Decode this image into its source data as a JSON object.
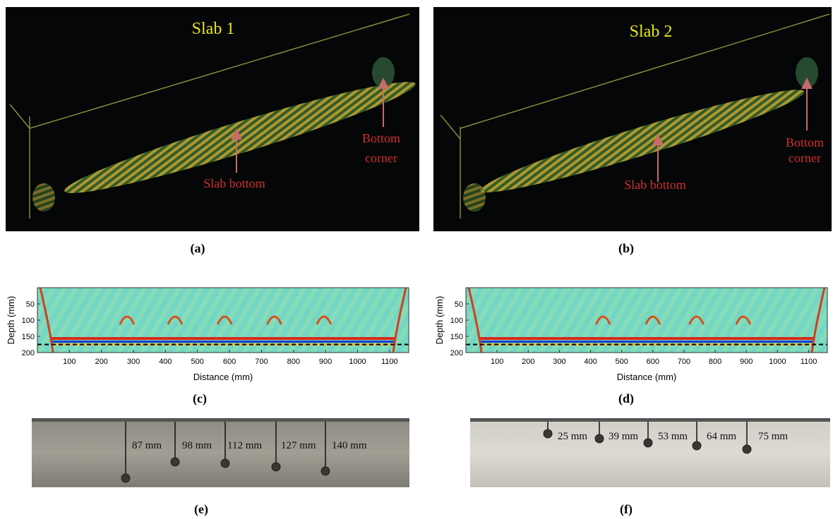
{
  "renders": [
    {
      "title": "Slab 1",
      "slab_bottom": "Slab bottom",
      "bottom_corner": [
        "Bottom",
        "corner"
      ],
      "label": "(a)"
    },
    {
      "title": "Slab 2",
      "slab_bottom": "Slab bottom",
      "bottom_corner": [
        "Bottom",
        "corner"
      ],
      "label": "(b)"
    }
  ],
  "bscans": [
    {
      "label": "(c)",
      "xlabel": "Distance (mm)",
      "ylabel": "Depth (mm)",
      "xlim": [
        0,
        1160
      ],
      "ylim": [
        0,
        200
      ],
      "y_reversed": true,
      "xticks": [
        100,
        200,
        300,
        400,
        500,
        600,
        700,
        800,
        900,
        1000,
        1100
      ],
      "yticks": [
        50,
        100,
        150,
        200
      ],
      "dashed_line_depth": 175
    },
    {
      "label": "(d)",
      "xlabel": "Distance (mm)",
      "ylabel": "Depth (mm)",
      "xlim": [
        0,
        1160
      ],
      "ylim": [
        0,
        200
      ],
      "y_reversed": true,
      "xticks": [
        100,
        200,
        300,
        400,
        500,
        600,
        700,
        800,
        900,
        1000,
        1100
      ],
      "yticks": [
        50,
        100,
        150,
        200
      ],
      "dashed_line_depth": 175
    }
  ],
  "photos": [
    {
      "label": "(e)",
      "depths": [
        "87 mm",
        "98 mm",
        "112 mm",
        "127 mm",
        "140 mm"
      ]
    },
    {
      "label": "(f)",
      "depths": [
        "25 mm",
        "39 mm",
        "53 mm",
        "64 mm",
        "75 mm"
      ]
    }
  ]
}
